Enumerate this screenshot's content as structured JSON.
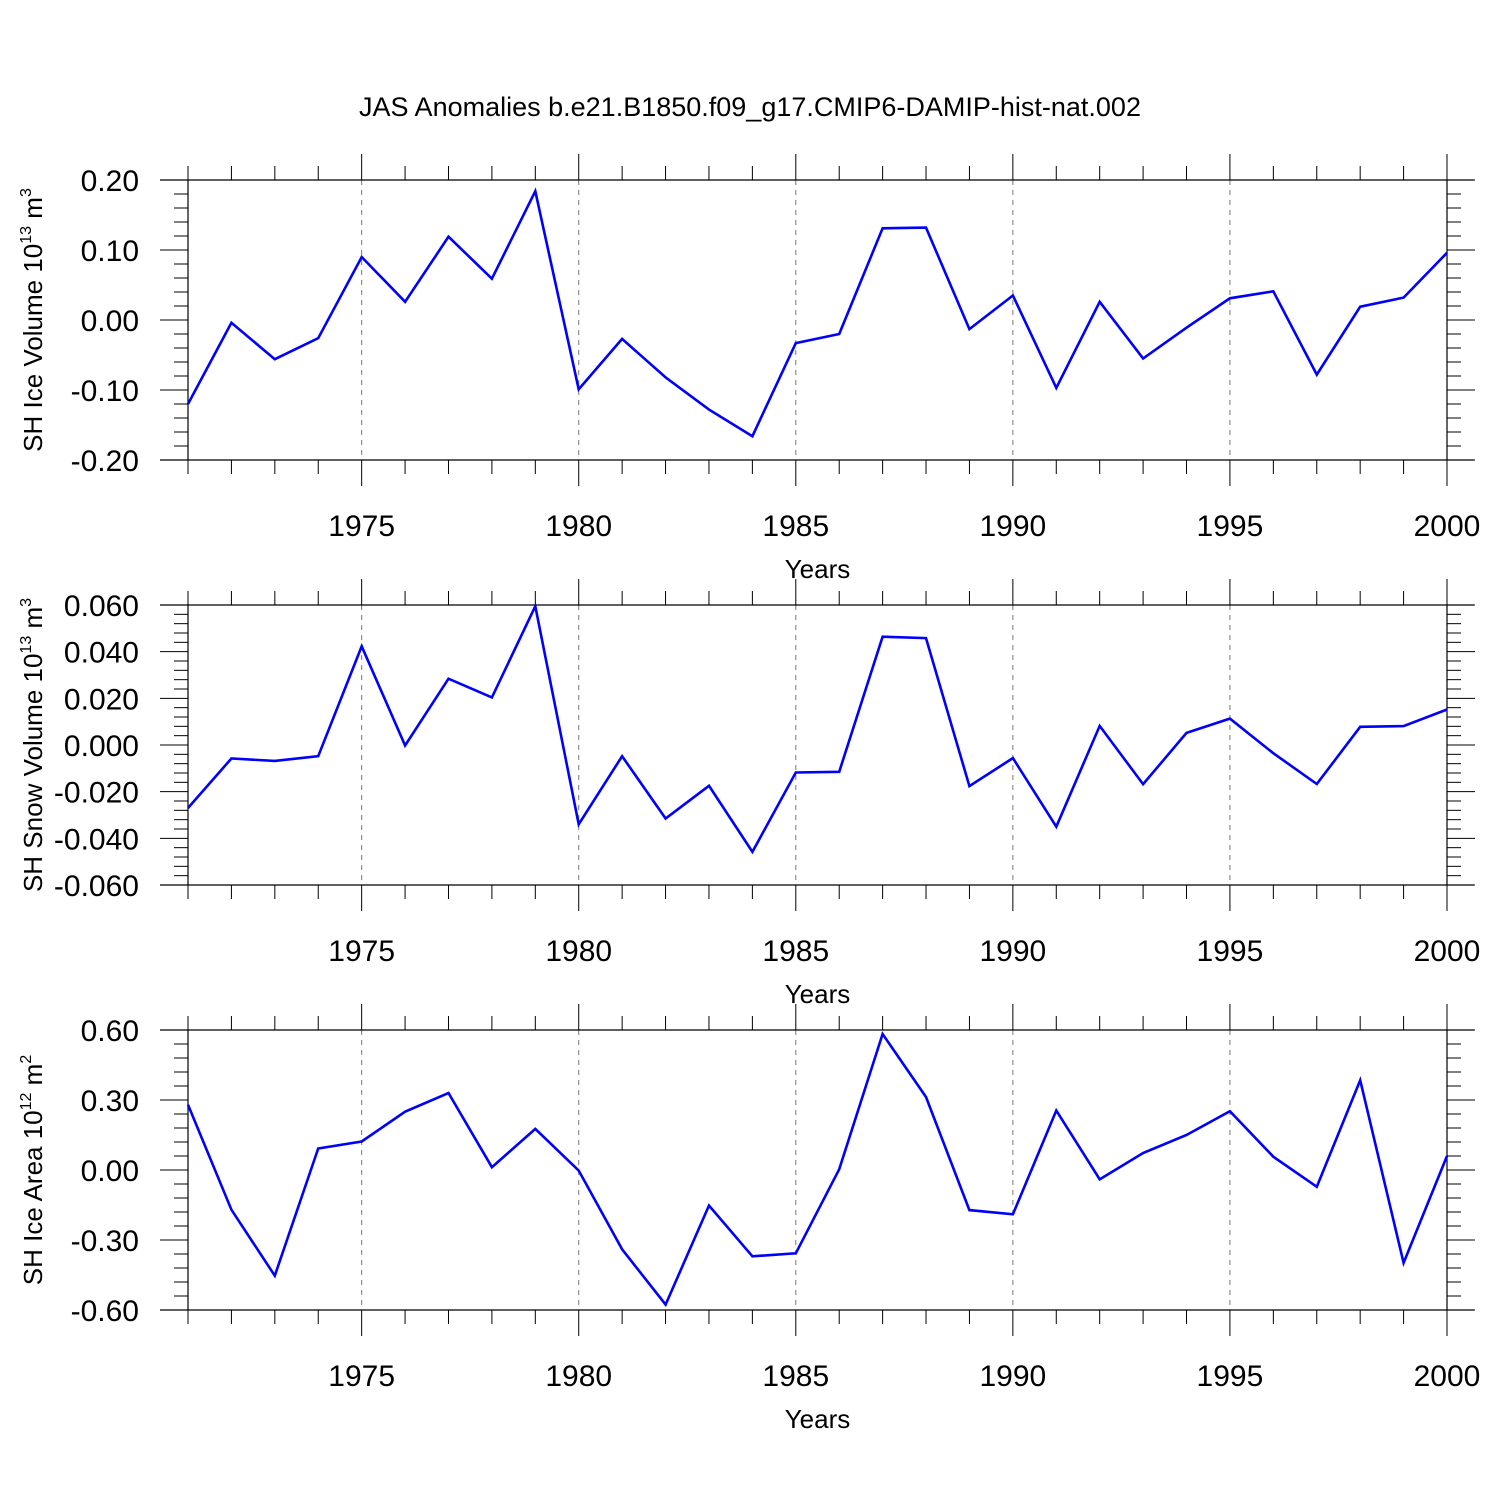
{
  "figure": {
    "title": "JAS Anomalies b.e21.B1850.f09_g17.CMIP6-DAMIP-hist-nat.002"
  },
  "chart_data": [
    {
      "type": "line",
      "ylabel": "SH Ice Volume 10",
      "ylabel_exponent": "13",
      "ylabel_unit": "m",
      "ylabel_unit_exponent": "3",
      "xlabel": "Years",
      "xlim": [
        1971,
        2000
      ],
      "ylim": [
        -0.2,
        0.2
      ],
      "x_major_ticks": [
        "1975",
        "1980",
        "1985",
        "1990",
        "1995",
        "2000"
      ],
      "y_major_ticks": [
        "0.20",
        "0.10",
        "0.00",
        "-0.10",
        "-0.20"
      ],
      "line_color": "#0000ff",
      "x": [
        1971,
        1972,
        1973,
        1974,
        1975,
        1976,
        1977,
        1978,
        1979,
        1980,
        1981,
        1982,
        1983,
        1984,
        1985,
        1986,
        1987,
        1988,
        1989,
        1990,
        1991,
        1992,
        1993,
        1994,
        1995,
        1996,
        1997,
        1998,
        1999,
        2000
      ],
      "values": [
        -0.12,
        -0.004,
        -0.056,
        -0.026,
        0.09,
        0.026,
        0.119,
        0.059,
        0.184,
        -0.099,
        -0.027,
        -0.082,
        -0.128,
        -0.166,
        -0.033,
        -0.02,
        0.131,
        0.132,
        -0.013,
        0.035,
        -0.097,
        0.026,
        -0.055,
        -0.011,
        0.031,
        0.041,
        -0.078,
        0.019,
        0.032,
        0.096
      ]
    },
    {
      "type": "line",
      "ylabel": "SH Snow Volume 10",
      "ylabel_exponent": "13",
      "ylabel_unit": "m",
      "ylabel_unit_exponent": "3",
      "xlabel": "Years",
      "xlim": [
        1971,
        2000
      ],
      "ylim": [
        -0.06,
        0.06
      ],
      "x_major_ticks": [
        "1975",
        "1980",
        "1985",
        "1990",
        "1995",
        "2000"
      ],
      "y_major_ticks": [
        "0.060",
        "0.040",
        "0.020",
        "0.000",
        "-0.020",
        "-0.040",
        "-0.060"
      ],
      "line_color": "#0000ff",
      "x": [
        1971,
        1972,
        1973,
        1974,
        1975,
        1976,
        1977,
        1978,
        1979,
        1980,
        1981,
        1982,
        1983,
        1984,
        1985,
        1986,
        1987,
        1988,
        1989,
        1990,
        1991,
        1992,
        1993,
        1994,
        1995,
        1996,
        1997,
        1998,
        1999,
        2000
      ],
      "values": [
        -0.027,
        -0.0058,
        -0.0068,
        -0.0048,
        0.0423,
        -0.0002,
        0.0284,
        0.0204,
        0.0595,
        -0.034,
        -0.0048,
        -0.0315,
        -0.0175,
        -0.0458,
        -0.0118,
        -0.0115,
        0.0464,
        0.0458,
        -0.0176,
        -0.0056,
        -0.035,
        0.0082,
        -0.0168,
        0.0052,
        0.0113,
        -0.0035,
        -0.0167,
        0.0078,
        0.0081,
        0.0152
      ]
    },
    {
      "type": "line",
      "ylabel": "SH Ice Area 10",
      "ylabel_exponent": "12",
      "ylabel_unit": "m",
      "ylabel_unit_exponent": "2",
      "xlabel": "Years",
      "xlim": [
        1971,
        2000
      ],
      "ylim": [
        -0.6,
        0.6
      ],
      "x_major_ticks": [
        "1975",
        "1980",
        "1985",
        "1990",
        "1995",
        "2000"
      ],
      "y_major_ticks": [
        "0.60",
        "0.30",
        "0.00",
        "-0.30",
        "-0.60"
      ],
      "line_color": "#0000ff",
      "x": [
        1971,
        1972,
        1973,
        1974,
        1975,
        1976,
        1977,
        1978,
        1979,
        1980,
        1981,
        1982,
        1983,
        1984,
        1985,
        1986,
        1987,
        1988,
        1989,
        1990,
        1991,
        1992,
        1993,
        1994,
        1995,
        1996,
        1997,
        1998,
        1999,
        2000
      ],
      "values": [
        0.28,
        -0.17,
        -0.453,
        0.092,
        0.122,
        0.25,
        0.33,
        0.012,
        0.176,
        -0.002,
        -0.34,
        -0.577,
        -0.152,
        -0.37,
        -0.357,
        0.003,
        0.583,
        0.313,
        -0.172,
        -0.19,
        0.255,
        -0.04,
        0.073,
        0.15,
        0.252,
        0.057,
        -0.072,
        0.385,
        -0.398,
        0.06
      ]
    }
  ]
}
